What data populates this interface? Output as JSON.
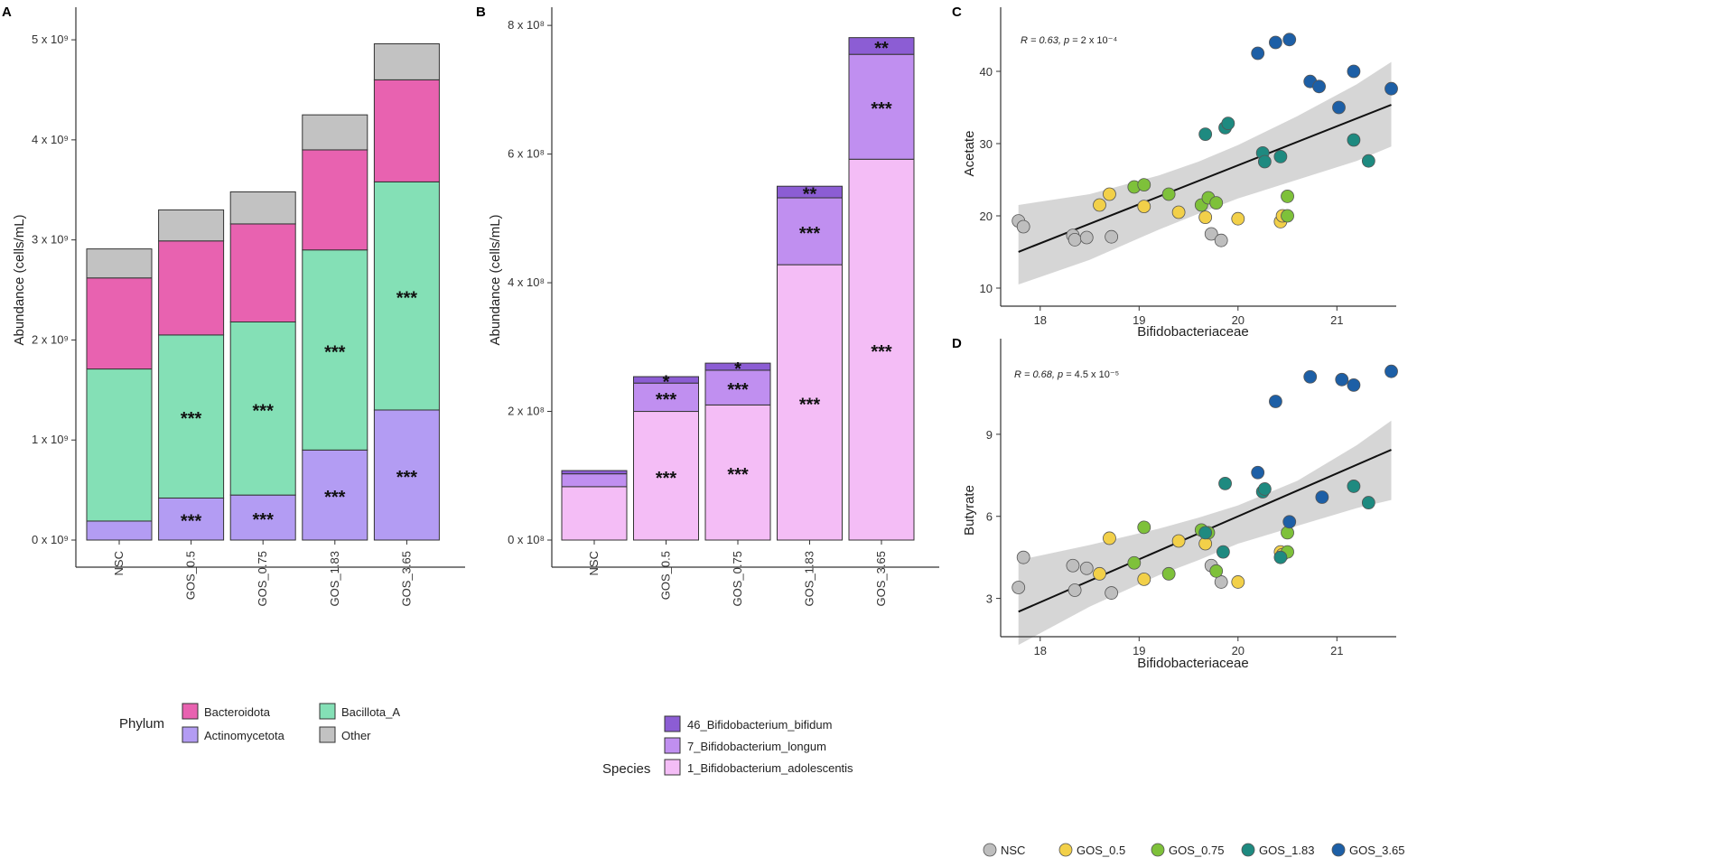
{
  "panels": {
    "a": "A",
    "b": "B",
    "c": "C",
    "d": "D"
  },
  "sci": {
    "a": [
      "0 x 10⁹",
      "1 x 10⁹",
      "2 x 10⁹",
      "3 x 10⁹",
      "4 x 10⁹",
      "5 x 10⁹"
    ],
    "b": [
      "0 x 10⁸",
      "2 x 10⁸",
      "4 x 10⁸",
      "6 x 10⁸",
      "8 x 10⁸"
    ]
  },
  "chart_data": [
    {
      "id": "A",
      "type": "bar",
      "stacked": true,
      "categories": [
        "NSC",
        "GOS_0.5",
        "GOS_0.75",
        "GOS_1.83",
        "GOS_3.65"
      ],
      "ylabel": "Abundance (cells/mL)",
      "ylim": [
        0,
        5100000000
      ],
      "yticks": [
        0,
        1000000000,
        2000000000,
        3000000000,
        4000000000,
        5000000000
      ],
      "legend_title": "Phylum",
      "legend_position": "bottom",
      "series": [
        {
          "name": "Actinomycetota",
          "color": "#b39cf3",
          "values": [
            190000000,
            420000000,
            450000000,
            900000000,
            1300000000
          ],
          "sig": [
            "",
            "***",
            "***",
            "***",
            "***"
          ]
        },
        {
          "name": "Bacillota_A",
          "color": "#84e0b6",
          "values": [
            1520000000,
            1630000000,
            1730000000,
            2000000000,
            2280000000
          ],
          "sig": [
            "",
            "***",
            "***",
            "***",
            "***"
          ]
        },
        {
          "name": "Bacteroidota",
          "color": "#e862b0",
          "values": [
            910000000,
            940000000,
            980000000,
            1000000000,
            1020000000
          ],
          "sig": [
            "",
            "",
            "",
            "",
            ""
          ]
        },
        {
          "name": "Other",
          "color": "#c2c2c2",
          "values": [
            290000000,
            310000000,
            320000000,
            350000000,
            360000000
          ],
          "sig": [
            "",
            "",
            "",
            "",
            ""
          ]
        }
      ],
      "legend_order": [
        "Bacteroidota",
        "Bacillota_A",
        "Actinomycetota",
        "Other"
      ]
    },
    {
      "id": "B",
      "type": "bar",
      "stacked": true,
      "categories": [
        "NSC",
        "GOS_0.5",
        "GOS_0.75",
        "GOS_1.83",
        "GOS_3.65"
      ],
      "ylabel": "Abundance (cells/mL)",
      "ylim": [
        0,
        810000000
      ],
      "yticks": [
        0,
        200000000,
        400000000,
        600000000,
        800000000
      ],
      "legend_title": "Species",
      "legend_position": "bottom",
      "series": [
        {
          "name": "1_Bifidobacterium_adolescentis",
          "color": "#f4bdf6",
          "values": [
            83000000,
            200000000,
            210000000,
            428000000,
            592000000
          ],
          "sig": [
            "",
            "***",
            "***",
            "***",
            "***"
          ]
        },
        {
          "name": "7_Bifidobacterium_longum",
          "color": "#c08ff0",
          "values": [
            20000000,
            44000000,
            54000000,
            104000000,
            163000000
          ],
          "sig": [
            "",
            "***",
            "***",
            "***",
            "***"
          ]
        },
        {
          "name": "46_Bifidobacterium_bifidum",
          "color": "#8c5dd4",
          "values": [
            5000000,
            10000000,
            11000000,
            18000000,
            26000000
          ],
          "sig": [
            "",
            "*",
            "*",
            "**",
            "**"
          ]
        }
      ],
      "legend_order": [
        "46_Bifidobacterium_bifidum",
        "7_Bifidobacterium_longum",
        "1_Bifidobacterium_adolescentis"
      ]
    },
    {
      "id": "C",
      "type": "scatter",
      "xlabel": "Bifidobacteriaceae",
      "ylabel": "Acetate",
      "xlim": [
        17.6,
        21.6
      ],
      "ylim": [
        7.5,
        46.5
      ],
      "xticks": [
        18,
        19,
        20,
        21
      ],
      "yticks": [
        10,
        20,
        30,
        40
      ],
      "annotation": {
        "r": "R = 0.63, ",
        "p": "p",
        "eq": " = 2 x 10⁻⁴"
      },
      "fit": {
        "slope": 5.4,
        "intercept": -81.0
      },
      "band": {
        "x": [
          17.78,
          18.5,
          19.2,
          19.6,
          20.0,
          20.6,
          21.2,
          21.55
        ],
        "upper": [
          21.5,
          23.0,
          25.6,
          27.5,
          29.8,
          33.8,
          38.2,
          41.3
        ],
        "lower": [
          10.5,
          13.9,
          18.1,
          20.3,
          22.4,
          25.0,
          27.6,
          29.6
        ]
      },
      "points": [
        {
          "x": 17.78,
          "y": 19.3,
          "group": "NSC"
        },
        {
          "x": 17.83,
          "y": 18.5,
          "group": "NSC"
        },
        {
          "x": 18.33,
          "y": 17.3,
          "group": "NSC"
        },
        {
          "x": 18.35,
          "y": 16.7,
          "group": "NSC"
        },
        {
          "x": 18.47,
          "y": 17.0,
          "group": "NSC"
        },
        {
          "x": 18.72,
          "y": 17.1,
          "group": "NSC"
        },
        {
          "x": 19.73,
          "y": 17.5,
          "group": "NSC"
        },
        {
          "x": 19.83,
          "y": 16.6,
          "group": "NSC"
        },
        {
          "x": 18.6,
          "y": 21.5,
          "group": "GOS_0.5"
        },
        {
          "x": 18.7,
          "y": 23.0,
          "group": "GOS_0.5"
        },
        {
          "x": 19.05,
          "y": 21.3,
          "group": "GOS_0.5"
        },
        {
          "x": 19.4,
          "y": 20.5,
          "group": "GOS_0.5"
        },
        {
          "x": 19.67,
          "y": 19.8,
          "group": "GOS_0.5"
        },
        {
          "x": 20.0,
          "y": 19.6,
          "group": "GOS_0.5"
        },
        {
          "x": 20.43,
          "y": 19.2,
          "group": "GOS_0.5"
        },
        {
          "x": 20.45,
          "y": 20.0,
          "group": "GOS_0.5"
        },
        {
          "x": 18.95,
          "y": 24.0,
          "group": "GOS_0.75"
        },
        {
          "x": 19.05,
          "y": 24.3,
          "group": "GOS_0.75"
        },
        {
          "x": 19.3,
          "y": 23.0,
          "group": "GOS_0.75"
        },
        {
          "x": 19.63,
          "y": 21.5,
          "group": "GOS_0.75"
        },
        {
          "x": 19.7,
          "y": 22.5,
          "group": "GOS_0.75"
        },
        {
          "x": 19.78,
          "y": 21.8,
          "group": "GOS_0.75"
        },
        {
          "x": 20.5,
          "y": 22.7,
          "group": "GOS_0.75"
        },
        {
          "x": 20.5,
          "y": 20.0,
          "group": "GOS_0.75"
        },
        {
          "x": 19.67,
          "y": 31.3,
          "group": "GOS_1.83"
        },
        {
          "x": 19.87,
          "y": 32.2,
          "group": "GOS_1.83"
        },
        {
          "x": 19.9,
          "y": 32.8,
          "group": "GOS_1.83"
        },
        {
          "x": 20.25,
          "y": 28.7,
          "group": "GOS_1.83"
        },
        {
          "x": 20.27,
          "y": 27.5,
          "group": "GOS_1.83"
        },
        {
          "x": 20.43,
          "y": 28.2,
          "group": "GOS_1.83"
        },
        {
          "x": 21.17,
          "y": 30.5,
          "group": "GOS_1.83"
        },
        {
          "x": 21.32,
          "y": 27.6,
          "group": "GOS_1.83"
        },
        {
          "x": 20.2,
          "y": 42.5,
          "group": "GOS_3.65"
        },
        {
          "x": 20.38,
          "y": 44.0,
          "group": "GOS_3.65"
        },
        {
          "x": 20.52,
          "y": 44.4,
          "group": "GOS_3.65"
        },
        {
          "x": 20.73,
          "y": 38.6,
          "group": "GOS_3.65"
        },
        {
          "x": 20.82,
          "y": 37.9,
          "group": "GOS_3.65"
        },
        {
          "x": 21.17,
          "y": 40.0,
          "group": "GOS_3.65"
        },
        {
          "x": 21.55,
          "y": 37.6,
          "group": "GOS_3.65"
        },
        {
          "x": 21.02,
          "y": 35.0,
          "group": "GOS_3.65"
        }
      ]
    },
    {
      "id": "D",
      "type": "scatter",
      "xlabel": "Bifidobacteriaceae",
      "ylabel": "Butyrate",
      "xlim": [
        17.6,
        21.6
      ],
      "ylim": [
        1.6,
        12.0
      ],
      "xticks": [
        18,
        19,
        20,
        21
      ],
      "yticks": [
        3,
        6,
        9
      ],
      "annotation": {
        "r": "R = 0.68, ",
        "p": "p",
        "eq": " = 4.5 x 10⁻⁵"
      },
      "fit": {
        "slope": 1.57,
        "intercept": -25.4
      },
      "band": {
        "x": [
          17.78,
          18.5,
          19.2,
          19.6,
          20.0,
          20.6,
          21.2,
          21.55
        ],
        "upper": [
          4.4,
          4.95,
          5.55,
          5.95,
          6.4,
          7.3,
          8.6,
          9.5
        ],
        "lower": [
          1.3,
          2.7,
          3.85,
          4.4,
          5.0,
          5.65,
          6.3,
          6.6
        ]
      },
      "points": [
        {
          "x": 17.78,
          "y": 3.4,
          "group": "NSC"
        },
        {
          "x": 17.83,
          "y": 4.5,
          "group": "NSC"
        },
        {
          "x": 18.33,
          "y": 4.2,
          "group": "NSC"
        },
        {
          "x": 18.35,
          "y": 3.3,
          "group": "NSC"
        },
        {
          "x": 18.47,
          "y": 4.1,
          "group": "NSC"
        },
        {
          "x": 18.72,
          "y": 3.2,
          "group": "NSC"
        },
        {
          "x": 19.73,
          "y": 4.2,
          "group": "NSC"
        },
        {
          "x": 19.83,
          "y": 3.6,
          "group": "NSC"
        },
        {
          "x": 18.6,
          "y": 3.9,
          "group": "GOS_0.5"
        },
        {
          "x": 18.7,
          "y": 5.2,
          "group": "GOS_0.5"
        },
        {
          "x": 19.05,
          "y": 3.7,
          "group": "GOS_0.5"
        },
        {
          "x": 19.4,
          "y": 5.1,
          "group": "GOS_0.5"
        },
        {
          "x": 19.67,
          "y": 5.0,
          "group": "GOS_0.5"
        },
        {
          "x": 20.0,
          "y": 3.6,
          "group": "GOS_0.5"
        },
        {
          "x": 20.43,
          "y": 4.7,
          "group": "GOS_0.5"
        },
        {
          "x": 20.45,
          "y": 4.6,
          "group": "GOS_0.5"
        },
        {
          "x": 18.95,
          "y": 4.3,
          "group": "GOS_0.75"
        },
        {
          "x": 19.05,
          "y": 5.6,
          "group": "GOS_0.75"
        },
        {
          "x": 19.3,
          "y": 3.9,
          "group": "GOS_0.75"
        },
        {
          "x": 19.63,
          "y": 5.5,
          "group": "GOS_0.75"
        },
        {
          "x": 19.7,
          "y": 5.4,
          "group": "GOS_0.75"
        },
        {
          "x": 19.78,
          "y": 4.0,
          "group": "GOS_0.75"
        },
        {
          "x": 20.5,
          "y": 5.4,
          "group": "GOS_0.75"
        },
        {
          "x": 20.5,
          "y": 4.7,
          "group": "GOS_0.75"
        },
        {
          "x": 19.67,
          "y": 5.4,
          "group": "GOS_1.83"
        },
        {
          "x": 19.87,
          "y": 7.2,
          "group": "GOS_1.83"
        },
        {
          "x": 19.85,
          "y": 4.7,
          "group": "GOS_1.83"
        },
        {
          "x": 20.25,
          "y": 6.9,
          "group": "GOS_1.83"
        },
        {
          "x": 20.27,
          "y": 7.0,
          "group": "GOS_1.83"
        },
        {
          "x": 20.43,
          "y": 4.5,
          "group": "GOS_1.83"
        },
        {
          "x": 21.17,
          "y": 7.1,
          "group": "GOS_1.83"
        },
        {
          "x": 21.32,
          "y": 6.5,
          "group": "GOS_1.83"
        },
        {
          "x": 20.2,
          "y": 7.6,
          "group": "GOS_3.65"
        },
        {
          "x": 20.38,
          "y": 10.2,
          "group": "GOS_3.65"
        },
        {
          "x": 20.52,
          "y": 5.8,
          "group": "GOS_3.65"
        },
        {
          "x": 20.73,
          "y": 11.1,
          "group": "GOS_3.65"
        },
        {
          "x": 20.85,
          "y": 6.7,
          "group": "GOS_3.65"
        },
        {
          "x": 21.05,
          "y": 11.0,
          "group": "GOS_3.65"
        },
        {
          "x": 21.17,
          "y": 10.8,
          "group": "GOS_3.65"
        },
        {
          "x": 21.55,
          "y": 11.3,
          "group": "GOS_3.65"
        }
      ]
    }
  ],
  "scatter_legend": {
    "position": "bottom",
    "groups": [
      {
        "name": "NSC",
        "color": "#bebebe"
      },
      {
        "name": "GOS_0.5",
        "color": "#f2d049"
      },
      {
        "name": "GOS_0.75",
        "color": "#7ec13a"
      },
      {
        "name": "GOS_1.83",
        "color": "#1e8a80"
      },
      {
        "name": "GOS_3.65",
        "color": "#1d5fa6"
      }
    ]
  },
  "colors": {
    "fit_line": "#111111",
    "band": "#c8c8c8",
    "axis": "#333333",
    "bar_stroke": "#333333"
  }
}
